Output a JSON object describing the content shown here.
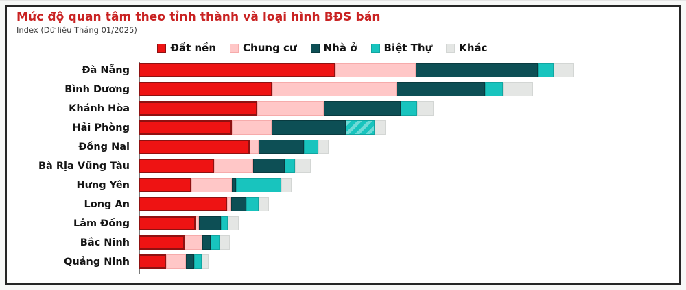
{
  "chart_data": {
    "type": "bar",
    "orientation": "horizontal",
    "stacked": true,
    "title": "Mức độ quan tâm theo tỉnh thành và loại hình BĐS bán",
    "subtitle": "Index (Dữ liệu Tháng 01/2025)",
    "title_color": "#c92222",
    "legend_position": "top-center",
    "axis_line_color": "#7a7a7a",
    "value_scale": "index, longest bar (Đà Nẵng) ≈ 100",
    "xlim": [
      0,
      122
    ],
    "categories": [
      "Đà Nẵng",
      "Bình Dương",
      "Khánh Hòa",
      "Hải Phòng",
      "Đồng Nai",
      "Bà Rịa Vũng Tàu",
      "Hưng Yên",
      "Long An",
      "Lâm Đồng",
      "Bắc Ninh",
      "Quảng Ninh"
    ],
    "series": [
      {
        "name": "Đất nền",
        "color": "#ee1313",
        "border_color": "#8f1111",
        "values": [
          45.2,
          30.8,
          27.3,
          21.5,
          25.6,
          17.4,
          12.2,
          20.3,
          13.0,
          10.5,
          6.3
        ]
      },
      {
        "name": "Chung cư",
        "color": "#ffc7c7",
        "border_color": "#f6abab",
        "values": [
          18.4,
          28.4,
          15.2,
          9.1,
          1.9,
          8.9,
          9.3,
          0.9,
          0.9,
          4.1,
          4.6
        ]
      },
      {
        "name": "Nhà ở",
        "color": "#0d4f55",
        "border_color": "#093b40",
        "values": [
          28.1,
          20.3,
          17.7,
          17.0,
          10.5,
          7.2,
          0.8,
          3.5,
          5.0,
          2.0,
          1.9
        ]
      },
      {
        "name": "Biệt Thự",
        "color": "#18c4be",
        "border_color": "#12a6a1",
        "values": [
          3.6,
          4.2,
          3.8,
          6.6,
          3.3,
          2.5,
          10.4,
          2.8,
          1.6,
          2.0,
          1.7
        ]
      },
      {
        "name": "Khác",
        "color": "#e4e6e4",
        "border_color": "#d3d6d4",
        "values": [
          4.7,
          6.9,
          3.8,
          2.5,
          2.4,
          3.6,
          2.4,
          2.5,
          2.5,
          2.4,
          1.6
        ]
      }
    ],
    "totals": [
      100.0,
      90.6,
      67.8,
      56.7,
      43.7,
      39.6,
      35.1,
      30.0,
      23.0,
      21.0,
      16.1
    ],
    "hatched_segment": {
      "category": "Hải Phòng",
      "series": "Biệt Thự"
    }
  }
}
